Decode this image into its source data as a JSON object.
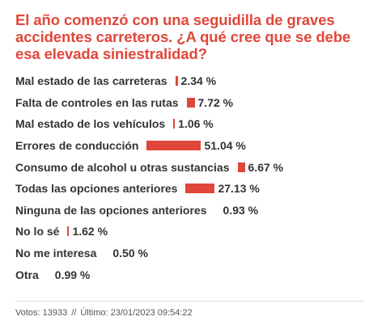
{
  "poll": {
    "question": "El año comenzó con una seguidilla de graves accidentes carreteros. ¿A qué cree que se debe esa elevada siniestralidad?",
    "accent_color": "#e0473a"
  },
  "chart_data": {
    "type": "bar",
    "orientation": "horizontal",
    "title": "El año comenzó con una seguidilla de graves accidentes carreteros. ¿A qué cree que se debe esa elevada siniestralidad?",
    "categories": [
      "Mal estado de las carreteras",
      "Falta de controles en las rutas",
      "Mal estado de los vehículos",
      "Errores de conducción",
      "Consumo de alcohol u otras sustancias",
      "Todas las opciones anteriores",
      "Ninguna de las opciones anteriores",
      "No lo sé",
      "No me interesa",
      "Otra"
    ],
    "values": [
      2.34,
      7.72,
      1.06,
      51.04,
      6.67,
      27.13,
      0.93,
      1.62,
      0.5,
      0.99
    ],
    "value_labels": [
      "2.34 %",
      "7.72 %",
      "1.06 %",
      "51.04 %",
      "6.67 %",
      "27.13 %",
      "0.93 %",
      "1.62 %",
      "0.50 %",
      "0.99 %"
    ],
    "unit": "%",
    "xlim": [
      0,
      100
    ],
    "grid": false,
    "legend": "none",
    "bar_color": "#e0473a"
  },
  "footer": {
    "votes": "Votos: 13933",
    "separator": "//",
    "last": "Último: 23/01/2023 09:54:22"
  }
}
